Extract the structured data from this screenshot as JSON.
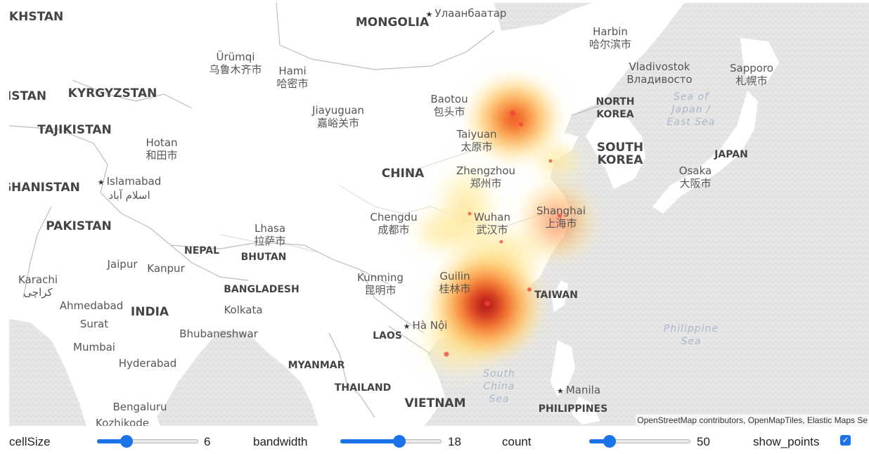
{
  "map": {
    "labels": [
      {
        "key": "akhstan",
        "text": "AKHSTAN",
        "type": "country"
      },
      {
        "key": "mongolia",
        "text": "MONGOLIA",
        "type": "country"
      },
      {
        "key": "ulaanbaatar",
        "text": "Улаанбаатар",
        "type": "capital"
      },
      {
        "key": "harbin",
        "text": "Harbin",
        "zh": "哈尔滨市",
        "type": "city"
      },
      {
        "key": "urumqi",
        "text": "Ürümqi",
        "zh": "乌鲁木齐市",
        "type": "city"
      },
      {
        "key": "hami",
        "text": "Hami",
        "zh": "哈密市",
        "type": "city"
      },
      {
        "key": "vladivostok",
        "text": "Vladivostok",
        "zh": "Владивосто",
        "type": "city"
      },
      {
        "key": "sapporo",
        "text": "Sapporo",
        "zh": "札幌市",
        "type": "city"
      },
      {
        "key": "istan",
        "text": "ISTAN",
        "type": "country"
      },
      {
        "key": "kyrgyzstan",
        "text": "KYRGYZSTAN",
        "type": "country"
      },
      {
        "key": "baotou",
        "text": "Baotou",
        "zh": "包头市",
        "type": "city"
      },
      {
        "key": "north_korea",
        "text": "NORTH",
        "zh": "KOREA",
        "type": "country-sm"
      },
      {
        "key": "sea_of_japan",
        "text": "Sea of",
        "zh": "Japan /",
        "extra": "East Sea",
        "type": "sea"
      },
      {
        "key": "jiayuguan",
        "text": "Jiayuguan",
        "zh": "嘉峪关市",
        "type": "city"
      },
      {
        "key": "tajikistan",
        "text": "TAJIKISTAN",
        "type": "country"
      },
      {
        "key": "hotan",
        "text": "Hotan",
        "zh": "和田市",
        "type": "city"
      },
      {
        "key": "taiyuan",
        "text": "Taiyuan",
        "zh": "太原市",
        "type": "city"
      },
      {
        "key": "south_korea",
        "text": "SOUTH",
        "zh": "KOREA",
        "type": "country"
      },
      {
        "key": "japan",
        "text": "JAPAN",
        "type": "country-sm"
      },
      {
        "key": "china",
        "text": "CHINA",
        "type": "country"
      },
      {
        "key": "zhengzhou",
        "text": "Zhengzhou",
        "zh": "郑州市",
        "type": "city"
      },
      {
        "key": "osaka",
        "text": "Osaka",
        "zh": "大阪市",
        "type": "city"
      },
      {
        "key": "afghanistan",
        "text": "GHANISTAN",
        "type": "country"
      },
      {
        "key": "islamabad",
        "text": "Islamabad",
        "zh": "اسلام آباد",
        "type": "capital"
      },
      {
        "key": "pakistan",
        "text": "PAKISTAN",
        "type": "country"
      },
      {
        "key": "chengdu",
        "text": "Chengdu",
        "zh": "成都市",
        "type": "city"
      },
      {
        "key": "wuhan",
        "text": "Wuhan",
        "zh": "武汉市",
        "type": "city"
      },
      {
        "key": "shanghai",
        "text": "Shanghai",
        "zh": "上海市",
        "type": "city"
      },
      {
        "key": "lhasa",
        "text": "Lhasa",
        "zh": "拉萨市",
        "type": "city"
      },
      {
        "key": "nepal",
        "text": "NEPAL",
        "type": "country-sm"
      },
      {
        "key": "bhutan",
        "text": "BHUTAN",
        "type": "country-sm"
      },
      {
        "key": "jaipur",
        "text": "Jaipur",
        "type": "city"
      },
      {
        "key": "kanpur",
        "text": "Kanpur",
        "type": "city"
      },
      {
        "key": "kunming",
        "text": "Kunming",
        "zh": "昆明市",
        "type": "city"
      },
      {
        "key": "guilin",
        "text": "Guilin",
        "zh": "桂林市",
        "type": "city"
      },
      {
        "key": "karachi",
        "text": "Karachi",
        "zh": "کراچی",
        "type": "city"
      },
      {
        "key": "bangladesh",
        "text": "BANGLADESH",
        "type": "country-sm"
      },
      {
        "key": "taiwan",
        "text": "TAIWAN",
        "type": "country-sm"
      },
      {
        "key": "ahmedabad",
        "text": "Ahmedabad",
        "type": "city"
      },
      {
        "key": "india",
        "text": "INDIA",
        "type": "country"
      },
      {
        "key": "kolkata",
        "text": "Kolkata",
        "type": "city"
      },
      {
        "key": "surat",
        "text": "Surat",
        "type": "city"
      },
      {
        "key": "hanoi",
        "text": "Hà Nội",
        "type": "capital"
      },
      {
        "key": "philippine_sea",
        "text": "Philippine",
        "zh": "Sea",
        "type": "sea"
      },
      {
        "key": "bhubaneswar",
        "text": "Bhubaneshwar",
        "type": "city"
      },
      {
        "key": "laos",
        "text": "LAOS",
        "type": "country-sm"
      },
      {
        "key": "mumbai",
        "text": "Mumbai",
        "type": "city"
      },
      {
        "key": "hyderabad",
        "text": "Hyderabad",
        "type": "city"
      },
      {
        "key": "myanmar",
        "text": "MYANMAR",
        "type": "country-sm"
      },
      {
        "key": "south_china_sea",
        "text": "South",
        "zh": "China",
        "extra": "Sea",
        "type": "sea"
      },
      {
        "key": "thailand",
        "text": "THAILAND",
        "type": "country-sm"
      },
      {
        "key": "manila",
        "text": "Manila",
        "type": "capital"
      },
      {
        "key": "bengaluru",
        "text": "Bengaluru",
        "type": "city"
      },
      {
        "key": "vietnam",
        "text": "VIETNAM",
        "type": "country"
      },
      {
        "key": "philippines",
        "text": "PHILIPPINES",
        "type": "country-sm"
      },
      {
        "key": "kozhikode",
        "text": "Kozhikode",
        "type": "city"
      }
    ],
    "attribution": "OpenStreetMap contributors, OpenMapTiles, Elastic Maps Se",
    "heatmap_colors": {
      "low": "#ffe9a0",
      "mid": "#fdae3c",
      "high": "#e3261c",
      "peak": "#8c0b1a"
    }
  },
  "controls": {
    "cellSize": {
      "label": "cellSize",
      "value": "6",
      "min": 1,
      "max": 20,
      "fraction": 0.29
    },
    "bandwidth": {
      "label": "bandwidth",
      "value": "18",
      "min": 1,
      "max": 30,
      "fraction": 0.58
    },
    "count": {
      "label": "count",
      "value": "50",
      "min": 1,
      "max": 300,
      "fraction": 0.2
    },
    "show_points": {
      "label": "show_points",
      "checked": true
    }
  }
}
